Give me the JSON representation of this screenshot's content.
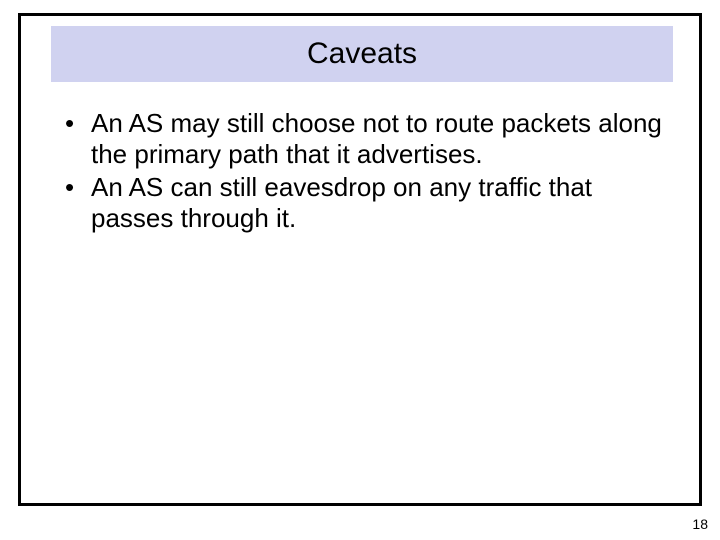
{
  "slide": {
    "title": "Caveats",
    "title_band_color": "#d0d2f0",
    "title_fontsize": 30,
    "border_color": "#000000",
    "border_width": 3,
    "background_color": "#ffffff",
    "bullets": [
      "An AS may still choose not to route packets along the primary path that it advertises.",
      "An AS can still eavesdrop on any traffic that passes through it."
    ],
    "bullet_fontsize": 26,
    "bullet_marker": "•",
    "page_number": "18",
    "page_number_fontsize": 14,
    "text_color": "#000000"
  }
}
